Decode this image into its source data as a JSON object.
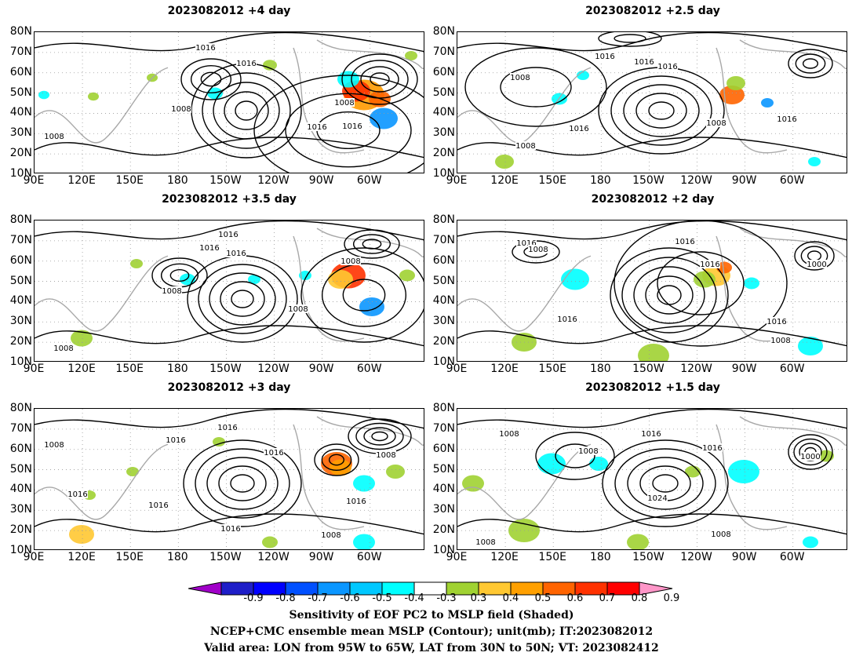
{
  "panels": [
    {
      "title": "2023082012 +4 day"
    },
    {
      "title": "2023082012 +2.5 day"
    },
    {
      "title": "2023082012 +3.5 day"
    },
    {
      "title": "2023082012 +2 day"
    },
    {
      "title": "2023082012 +3 day"
    },
    {
      "title": "2023082012 +1.5 day"
    }
  ],
  "axes": {
    "lat_labels": [
      "80N",
      "70N",
      "60N",
      "50N",
      "40N",
      "30N",
      "20N",
      "10N"
    ],
    "lon_labels": [
      "90E",
      "120E",
      "150E",
      "180",
      "150W",
      "120W",
      "90W",
      "60W"
    ]
  },
  "contour_labels": {
    "p0": [
      "1016",
      "1016",
      "1008",
      "1008",
      "1008",
      "1016",
      "1016"
    ],
    "p1": [
      "1016",
      "1016",
      "1016",
      "1008",
      "1016",
      "1008",
      "1016",
      "1008"
    ],
    "p2": [
      "1016",
      "1016",
      "1016",
      "1008",
      "1008",
      "1008",
      "1008"
    ],
    "p3": [
      "1016",
      "1008",
      "1016",
      "1016",
      "1000",
      "1016",
      "1016",
      "1008"
    ],
    "p4": [
      "1016",
      "1016",
      "1016",
      "1008",
      "1016",
      "1016",
      "1016",
      "1008",
      "1016",
      "1008"
    ],
    "p5": [
      "1008",
      "1016",
      "1008",
      "1016",
      "1000",
      "1024",
      "1008",
      "1008"
    ]
  },
  "colorbar": {
    "labels": [
      "-0.9",
      "-0.8",
      "-0.7",
      "-0.6",
      "-0.5",
      "-0.4",
      "-0.3",
      "0.3",
      "0.4",
      "0.5",
      "0.6",
      "0.7",
      "0.8",
      "0.9"
    ],
    "colors": [
      "#a000c8",
      "#1e1ec8",
      "#0000ff",
      "#0050ff",
      "#0a96ff",
      "#00c8ff",
      "#00ffff",
      "#ffffff",
      "#a0d232",
      "#ffc832",
      "#ffa000",
      "#ff6400",
      "#ff3200",
      "#ff0000",
      "#ff96c8"
    ]
  },
  "footer": {
    "line1": "Sensitivity of EOF PC2 to MSLP field (Shaded)",
    "line2": "NCEP+CMC ensemble mean MSLP (Contour); unit(mb); IT:2023082012",
    "line3": "Valid area: LON from 95W to 65W, LAT from 30N to 50N; VT: 2023082412"
  }
}
